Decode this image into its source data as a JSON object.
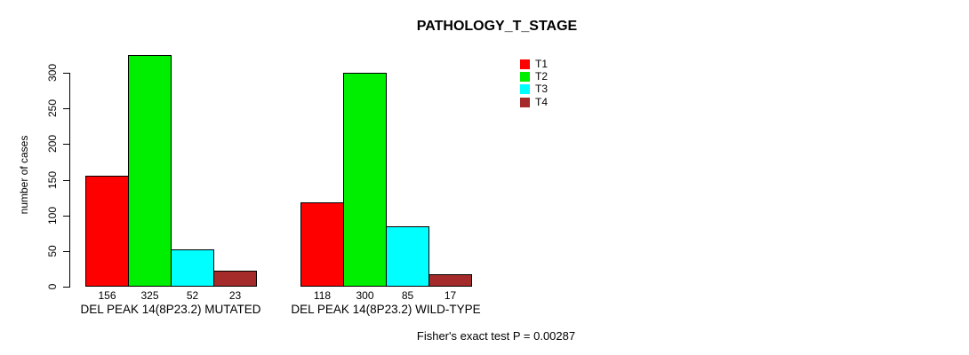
{
  "chart_data": {
    "type": "bar",
    "title": "PATHOLOGY_T_STAGE",
    "ylabel": "number of cases",
    "xlabel": "",
    "ylim": [
      0,
      300
    ],
    "yticks": [
      0,
      50,
      100,
      150,
      200,
      250,
      300
    ],
    "grid": false,
    "legend_position": "top-right",
    "categories": [
      "DEL PEAK 14(8P23.2) MUTATED",
      "DEL PEAK 14(8P23.2) WILD-TYPE"
    ],
    "series": [
      {
        "name": "T1",
        "color": "#FF0000",
        "values": [
          156,
          118
        ]
      },
      {
        "name": "T2",
        "color": "#00EE00",
        "values": [
          325,
          300
        ]
      },
      {
        "name": "T3",
        "color": "#00FFFF",
        "values": [
          52,
          85
        ]
      },
      {
        "name": "T4",
        "color": "#A52A2A",
        "values": [
          23,
          17
        ]
      }
    ],
    "bar_value_labels_shown": true,
    "annotation": "Fisher's exact test P = 0.00287"
  }
}
